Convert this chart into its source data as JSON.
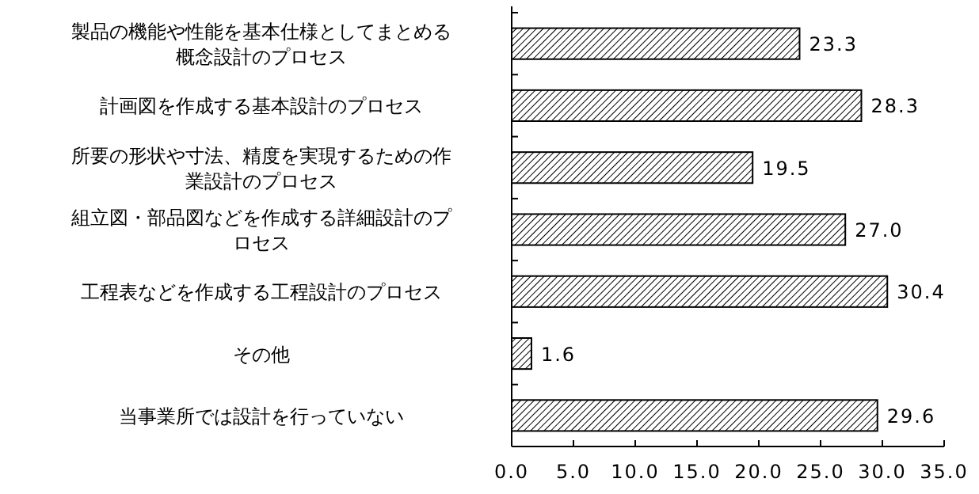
{
  "chart_data": {
    "type": "bar",
    "orientation": "horizontal",
    "categories": [
      "製品の機能や性能を基本仕様としてまとめる概念設計のプロセス",
      "計画図を作成する基本設計のプロセス",
      "所要の形状や寸法、精度を実現するための作業設計のプロセス",
      "組立図・部品図などを作成する詳細設計のプロセス",
      "工程表などを作成する工程設計のプロセス",
      "その他",
      "当事業所では設計を行っていない"
    ],
    "values": [
      23.3,
      28.3,
      19.5,
      27.0,
      30.4,
      1.6,
      29.6
    ],
    "value_labels": [
      "23.3",
      "28.3",
      "19.5",
      "27.0",
      "30.4",
      "1.6",
      "29.6"
    ],
    "color": "#000000",
    "xlim": [
      0,
      35
    ],
    "xticks": [
      {
        "value": 0,
        "label": "0.0"
      },
      {
        "value": 5,
        "label": "5.0"
      },
      {
        "value": 10,
        "label": "10.0"
      },
      {
        "value": 15,
        "label": "15.0"
      },
      {
        "value": 20,
        "label": "20.0"
      },
      {
        "value": 25,
        "label": "25.0"
      },
      {
        "value": 30,
        "label": "30.0"
      },
      {
        "value": 35,
        "label": "35.0"
      }
    ],
    "grid": false
  }
}
